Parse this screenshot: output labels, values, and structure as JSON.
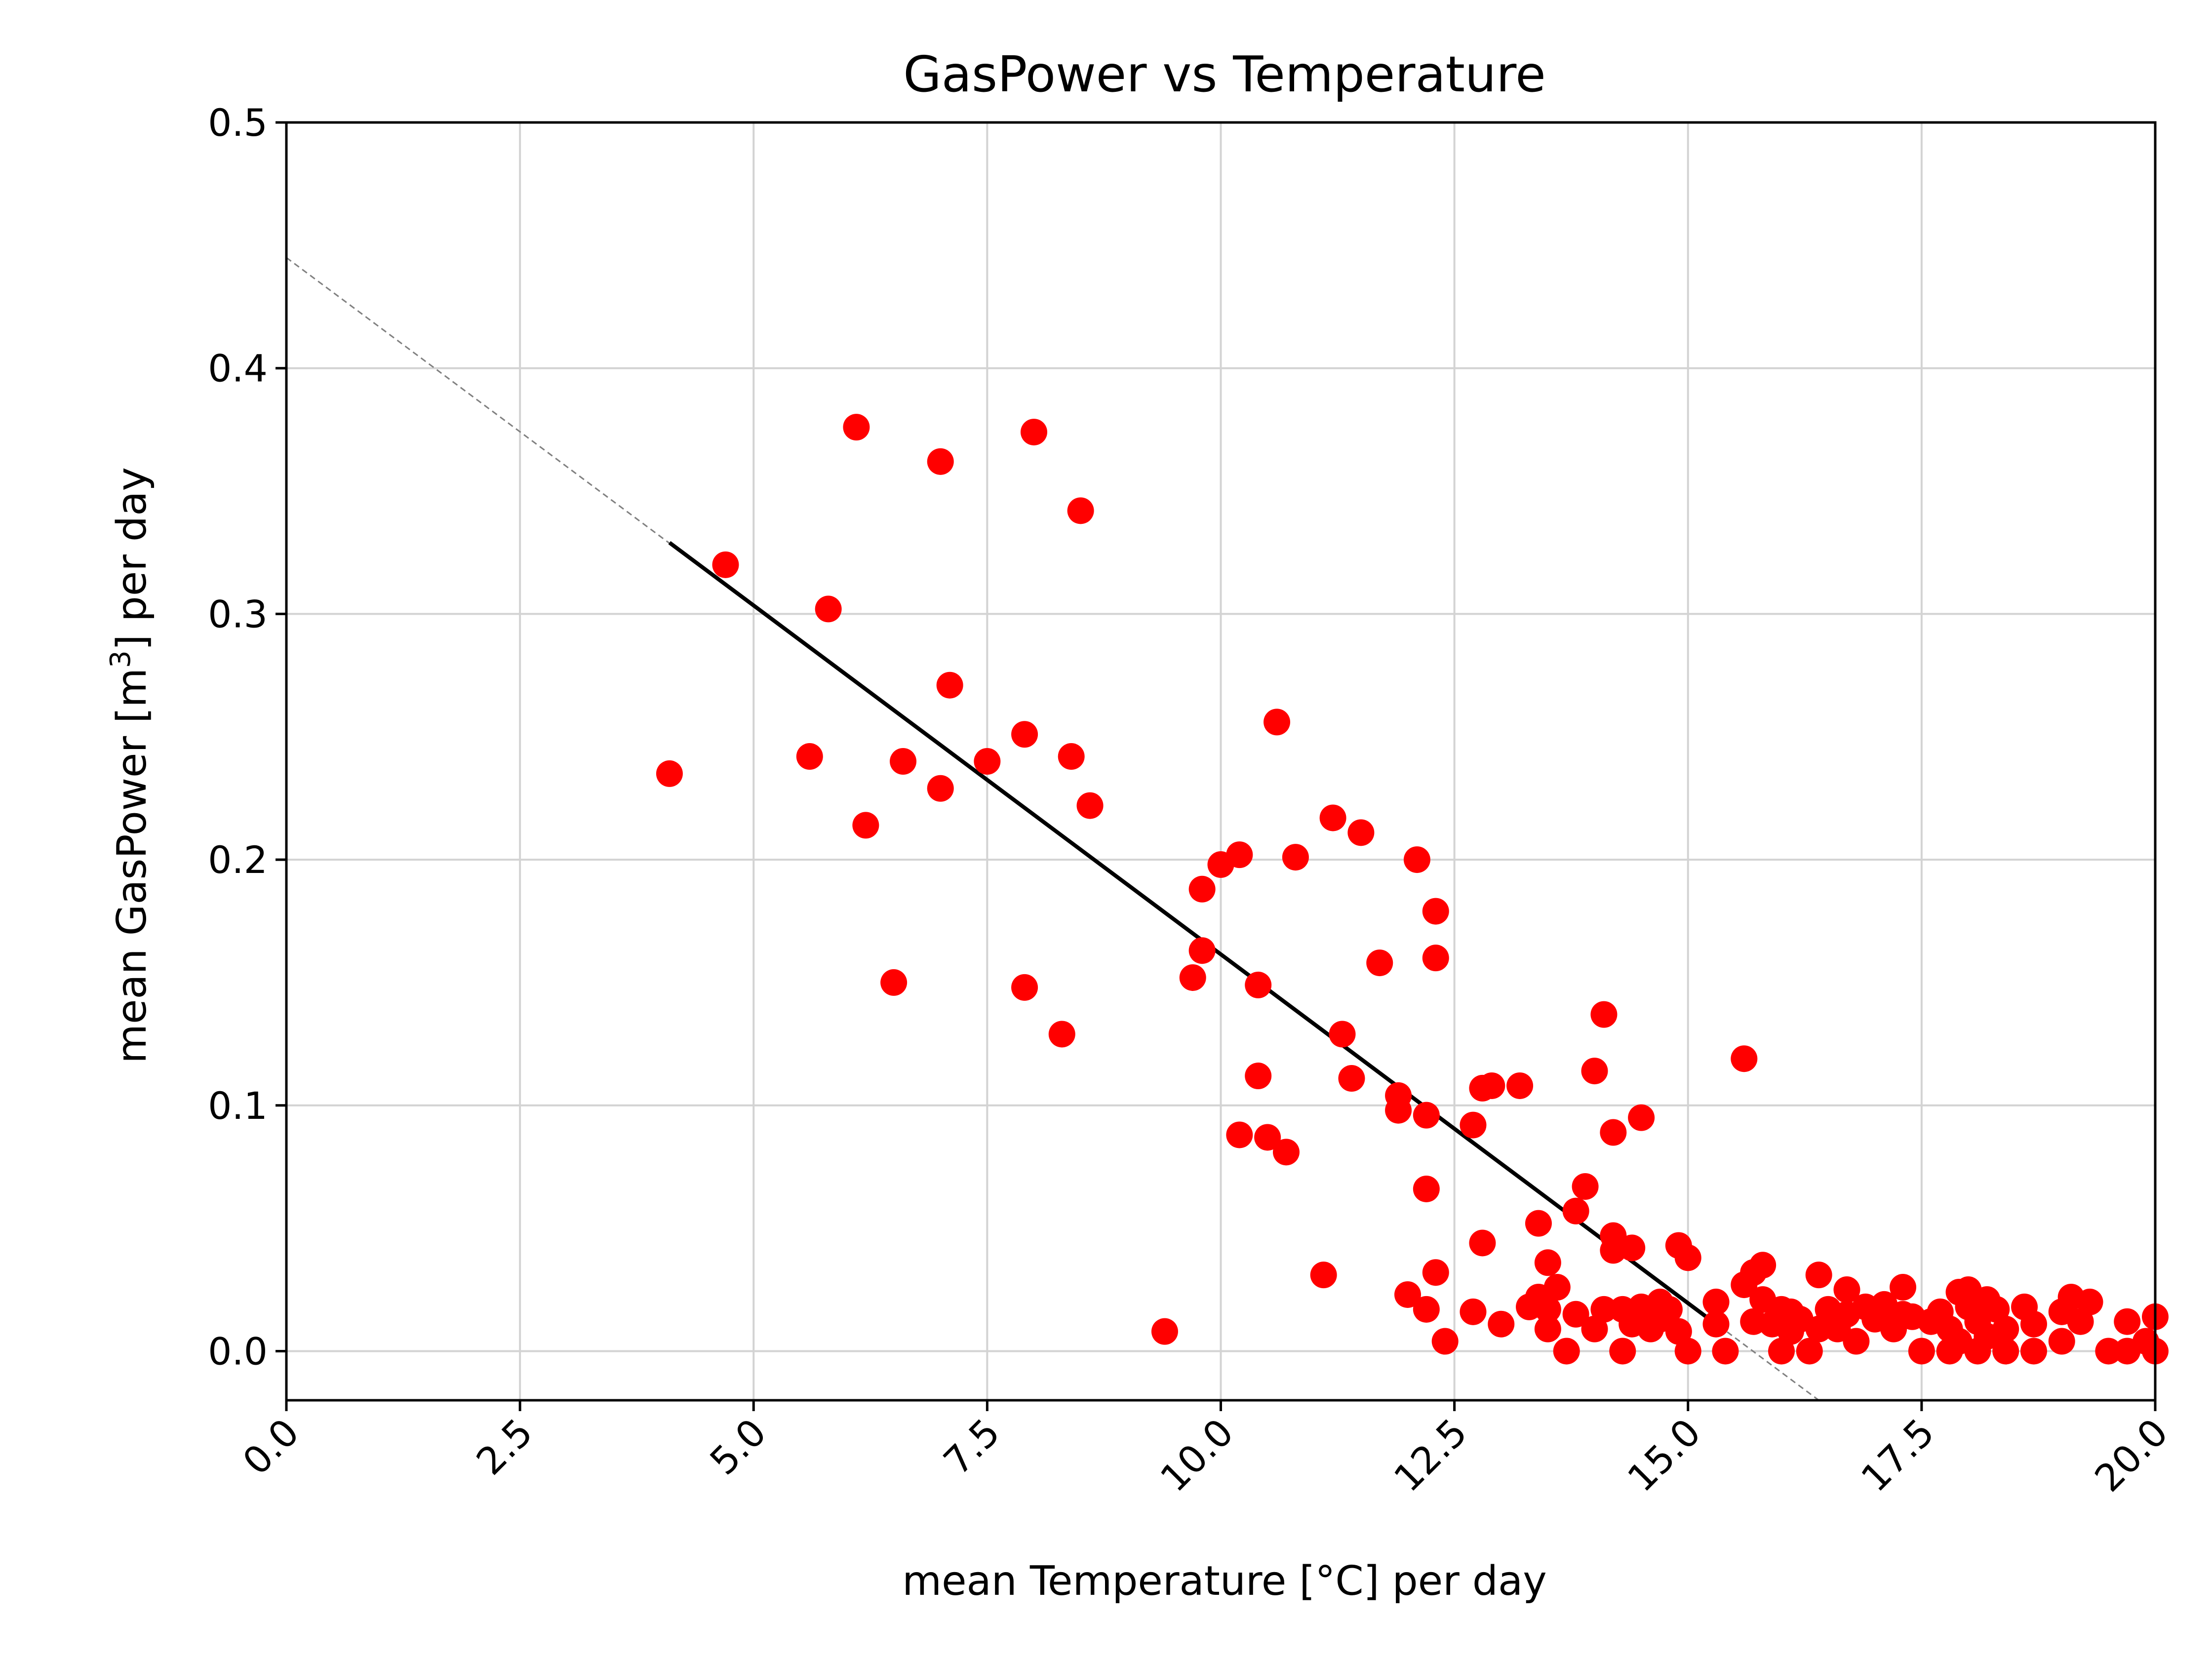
{
  "chart_data": {
    "type": "scatter",
    "title": "GasPower vs Temperature",
    "xlabel": "mean Temperature [°C] per day",
    "ylabel_main": "mean GasPower [m",
    "ylabel_sup": "3",
    "ylabel_tail": "] per day",
    "xlim": [
      0,
      20
    ],
    "ylim": [
      -0.02,
      0.5
    ],
    "xticks": [
      0,
      2.5,
      5,
      7.5,
      10,
      12.5,
      15,
      17.5,
      20
    ],
    "xtick_labels": [
      "0.0",
      "2.5",
      "5.0",
      "7.5",
      "10.0",
      "12.5",
      "15.0",
      "17.5",
      "20.0"
    ],
    "yticks": [
      0,
      0.1,
      0.2,
      0.3,
      0.4,
      0.5
    ],
    "ytick_labels": [
      "0.0",
      "0.1",
      "0.2",
      "0.3",
      "0.4",
      "0.5"
    ],
    "grid": true,
    "point_color": "#ff0000",
    "fit_line": {
      "color": "#000000",
      "x": [
        4.1,
        15.3
      ],
      "y": [
        0.329,
        0.011
      ]
    },
    "fit_extension": {
      "color": "#808080",
      "x": [
        0,
        16.4
      ],
      "y": [
        0.445,
        -0.02
      ]
    },
    "points": [
      [
        4.1,
        0.235
      ],
      [
        4.7,
        0.32
      ],
      [
        5.6,
        0.242
      ],
      [
        5.8,
        0.302
      ],
      [
        6.1,
        0.376
      ],
      [
        6.2,
        0.214
      ],
      [
        6.5,
        0.15
      ],
      [
        6.6,
        0.24
      ],
      [
        7.0,
        0.229
      ],
      [
        7.0,
        0.362
      ],
      [
        7.1,
        0.271
      ],
      [
        7.5,
        0.24
      ],
      [
        7.9,
        0.251
      ],
      [
        7.9,
        0.148
      ],
      [
        8.0,
        0.374
      ],
      [
        8.3,
        0.129
      ],
      [
        8.4,
        0.242
      ],
      [
        8.5,
        0.342
      ],
      [
        8.6,
        0.222
      ],
      [
        9.4,
        0.008
      ],
      [
        9.7,
        0.152
      ],
      [
        9.8,
        0.163
      ],
      [
        9.8,
        0.188
      ],
      [
        10.0,
        0.198
      ],
      [
        10.2,
        0.202
      ],
      [
        10.2,
        0.088
      ],
      [
        10.4,
        0.149
      ],
      [
        10.4,
        0.112
      ],
      [
        10.5,
        0.087
      ],
      [
        10.6,
        0.256
      ],
      [
        10.7,
        0.081
      ],
      [
        10.8,
        0.201
      ],
      [
        11.1,
        0.031
      ],
      [
        11.2,
        0.217
      ],
      [
        11.3,
        0.129
      ],
      [
        11.4,
        0.111
      ],
      [
        11.5,
        0.211
      ],
      [
        11.7,
        0.158
      ],
      [
        11.9,
        0.104
      ],
      [
        11.9,
        0.098
      ],
      [
        12.0,
        0.023
      ],
      [
        12.1,
        0.2
      ],
      [
        12.2,
        0.066
      ],
      [
        12.2,
        0.017
      ],
      [
        12.2,
        0.096
      ],
      [
        12.3,
        0.179
      ],
      [
        12.3,
        0.16
      ],
      [
        12.3,
        0.032
      ],
      [
        12.4,
        0.004
      ],
      [
        12.7,
        0.016
      ],
      [
        12.7,
        0.092
      ],
      [
        12.8,
        0.044
      ],
      [
        12.8,
        0.107
      ],
      [
        12.9,
        0.108
      ],
      [
        13.0,
        0.011
      ],
      [
        13.2,
        0.108
      ],
      [
        13.3,
        0.018
      ],
      [
        13.4,
        0.052
      ],
      [
        13.4,
        0.022
      ],
      [
        13.5,
        0.036
      ],
      [
        13.5,
        0.017
      ],
      [
        13.5,
        0.009
      ],
      [
        13.6,
        0.026
      ],
      [
        13.7,
        0.0
      ],
      [
        13.8,
        0.057
      ],
      [
        13.8,
        0.015
      ],
      [
        13.9,
        0.067
      ],
      [
        14.0,
        0.114
      ],
      [
        14.0,
        0.009
      ],
      [
        14.1,
        0.137
      ],
      [
        14.1,
        0.017
      ],
      [
        14.2,
        0.047
      ],
      [
        14.2,
        0.041
      ],
      [
        14.2,
        0.089
      ],
      [
        14.3,
        0.017
      ],
      [
        14.3,
        0.0
      ],
      [
        14.4,
        0.042
      ],
      [
        14.4,
        0.011
      ],
      [
        14.5,
        0.095
      ],
      [
        14.5,
        0.018
      ],
      [
        14.6,
        0.009
      ],
      [
        14.7,
        0.02
      ],
      [
        14.7,
        0.013
      ],
      [
        14.8,
        0.017
      ],
      [
        14.9,
        0.043
      ],
      [
        14.9,
        0.008
      ],
      [
        15.0,
        0.038
      ],
      [
        15.0,
        0.0
      ],
      [
        15.3,
        0.011
      ],
      [
        15.3,
        0.02
      ],
      [
        15.4,
        0.0
      ],
      [
        15.6,
        0.027
      ],
      [
        15.6,
        0.119
      ],
      [
        15.7,
        0.012
      ],
      [
        15.7,
        0.032
      ],
      [
        15.8,
        0.035
      ],
      [
        15.8,
        0.021
      ],
      [
        15.9,
        0.011
      ],
      [
        16.0,
        0.017
      ],
      [
        16.0,
        0.0
      ],
      [
        16.1,
        0.008
      ],
      [
        16.1,
        0.016
      ],
      [
        16.2,
        0.013
      ],
      [
        16.3,
        0.0
      ],
      [
        16.4,
        0.031
      ],
      [
        16.4,
        0.009
      ],
      [
        16.5,
        0.017
      ],
      [
        16.5,
        0.012
      ],
      [
        16.6,
        0.009
      ],
      [
        16.7,
        0.025
      ],
      [
        16.7,
        0.015
      ],
      [
        16.8,
        0.004
      ],
      [
        16.9,
        0.018
      ],
      [
        17.0,
        0.013
      ],
      [
        17.1,
        0.019
      ],
      [
        17.2,
        0.009
      ],
      [
        17.3,
        0.026
      ],
      [
        17.3,
        0.015
      ],
      [
        17.4,
        0.014
      ],
      [
        17.5,
        0.0
      ],
      [
        17.6,
        0.012
      ],
      [
        17.7,
        0.016
      ],
      [
        17.8,
        0.0
      ],
      [
        17.8,
        0.009
      ],
      [
        17.9,
        0.024
      ],
      [
        17.9,
        0.004
      ],
      [
        18.0,
        0.018
      ],
      [
        18.0,
        0.025
      ],
      [
        18.1,
        0.0
      ],
      [
        18.1,
        0.012
      ],
      [
        18.2,
        0.021
      ],
      [
        18.2,
        0.006
      ],
      [
        18.3,
        0.017
      ],
      [
        18.4,
        0.009
      ],
      [
        18.4,
        0.0
      ],
      [
        18.6,
        0.018
      ],
      [
        18.7,
        0.011
      ],
      [
        18.7,
        0.0
      ],
      [
        19.0,
        0.004
      ],
      [
        19.0,
        0.016
      ],
      [
        19.1,
        0.022
      ],
      [
        19.2,
        0.012
      ],
      [
        19.3,
        0.02
      ],
      [
        19.5,
        0.0
      ],
      [
        19.7,
        0.0
      ],
      [
        19.7,
        0.012
      ],
      [
        19.9,
        0.004
      ],
      [
        20.0,
        0.014
      ],
      [
        20.0,
        0.0
      ]
    ]
  }
}
